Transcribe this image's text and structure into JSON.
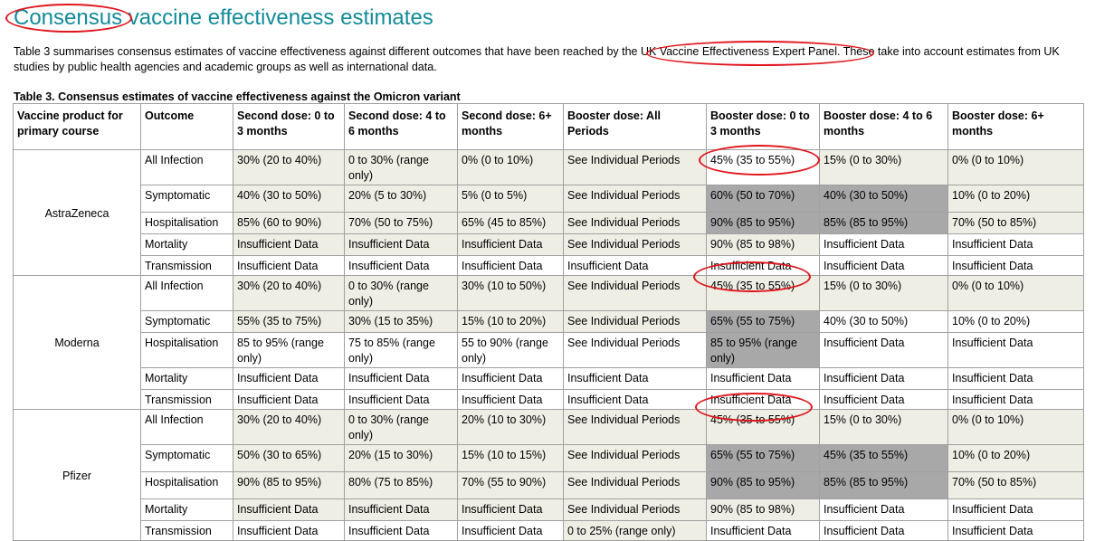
{
  "heading": "Consensus vaccine effectiveness estimates",
  "intro": "Table 3 summarises consensus estimates of vaccine effectiveness against different outcomes that have been reached by the UK Vaccine Effectiveness Expert Panel. These take into account estimates from UK studies by public health agencies and academic groups as well as international data.",
  "table": {
    "caption": "Table 3. Consensus estimates of vaccine effectiveness against the Omicron variant",
    "headers": [
      "Vaccine product for primary course",
      "Outcome",
      "Second dose: 0 to 3 months",
      "Second dose: 4 to 6 months",
      "Second dose: 6+ months",
      "Booster dose: All Periods",
      "Booster dose: 0 to 3 months",
      "Booster dose: 4 to 6 months",
      "Booster dose: 6+ months"
    ],
    "groups": [
      {
        "product": "AstraZeneca",
        "rows": [
          [
            "All Infection",
            "30% (20 to 40%)",
            "0 to 30% (range only)",
            "0% (0 to 10%)",
            "See Individual Periods",
            "45% (35 to 55%)",
            "15% (0 to 30%)",
            "0% (0 to 10%)"
          ],
          [
            "Symptomatic",
            "40% (30 to 50%)",
            "20% (5 to 30%)",
            "5% (0 to 5%)",
            "See Individual Periods",
            "60% (50 to 70%)",
            "40% (30 to 50%)",
            "10% (0 to 20%)"
          ],
          [
            "Hospitalisation",
            "85% (60 to 90%)",
            "70% (50 to 75%)",
            "65% (45 to 85%)",
            "See Individual Periods",
            "90% (85 to 95%)",
            "85% (85 to 95%)",
            "70% (50 to 85%)"
          ],
          [
            "Mortality",
            "Insufficient Data",
            "Insufficient Data",
            "Insufficient Data",
            "See Individual Periods",
            "90% (85 to 98%)",
            "Insufficient Data",
            "Insufficient Data"
          ],
          [
            "Transmission",
            "Insufficient Data",
            "Insufficient Data",
            "Insufficient Data",
            "Insufficient Data",
            "Insufficient Data",
            "Insufficient Data",
            "Insufficient Data"
          ]
        ]
      },
      {
        "product": "Moderna",
        "rows": [
          [
            "All Infection",
            "30% (20 to 40%)",
            "0 to 30% (range only)",
            "30% (10 to 50%)",
            "See Individual Periods",
            "45% (35 to 55%)",
            "15% (0 to 30%)",
            "0% (0 to 10%)"
          ],
          [
            "Symptomatic",
            "55% (35 to 75%)",
            "30% (15 to 35%)",
            "15% (10 to 20%)",
            "See Individual Periods",
            "65% (55 to 75%)",
            "40% (30 to 50%)",
            "10% (0 to 20%)"
          ],
          [
            "Hospitalisation",
            "85 to 95% (range only)",
            "75 to 85% (range only)",
            "55 to 90% (range only)",
            "See Individual Periods",
            "85 to 95% (range only)",
            "Insufficient Data",
            "Insufficient Data"
          ],
          [
            "Mortality",
            "Insufficient Data",
            "Insufficient Data",
            "Insufficient Data",
            "Insufficient Data",
            "Insufficient Data",
            "Insufficient Data",
            "Insufficient Data"
          ],
          [
            "Transmission",
            "Insufficient Data",
            "Insufficient Data",
            "Insufficient Data",
            "Insufficient Data",
            "Insufficient Data",
            "Insufficient Data",
            "Insufficient Data"
          ]
        ]
      },
      {
        "product": "Pfizer",
        "rows": [
          [
            "All Infection",
            "30% (20 to 40%)",
            "0 to 30% (range only)",
            "20% (10 to 30%)",
            "See Individual Periods",
            "45% (35 to 55%)",
            "15% (0 to 30%)",
            "0% (0 to 10%)"
          ],
          [
            "Symptomatic",
            "50% (30 to 65%)",
            "20% (15 to 30%)",
            "15% (10 to 15%)",
            "See Individual Periods",
            "65% (55 to 75%)",
            "45% (35 to 55%)",
            "10% (0 to 20%)"
          ],
          [
            "Hospitalisation",
            "90% (85 to 95%)",
            "80% (75 to 85%)",
            "70% (55 to 90%)",
            "See Individual Periods",
            "90% (85 to 95%)",
            "85% (85 to 95%)",
            "70% (50 to 85%)"
          ],
          [
            "Mortality",
            "Insufficient Data",
            "Insufficient Data",
            "Insufficient Data",
            "See Individual Periods",
            "90% (85 to 98%)",
            "Insufficient Data",
            "Insufficient Data"
          ],
          [
            "Transmission",
            "Insufficient Data",
            "Insufficient Data",
            "Insufficient Data",
            "0 to 25% (range only)",
            "Insufficient Data",
            "Insufficient Data",
            "Insufficient Data"
          ]
        ]
      }
    ],
    "shading": {
      "legend_colors": {
        "light": "#efeee4",
        "dark": "#a8a8a8"
      },
      "groups": [
        [
          "LLLL LLL",
          "LLLLDDL",
          "LLLLDDL",
          "LLLLL  ",
          "       "
        ],
        [
          "LLLLLLL",
          "LLLLD  ",
          "    D  ",
          "       ",
          "       "
        ],
        [
          "LLLLLLL",
          "LLLLDDL",
          "LLLLDDL",
          "LLLLL  ",
          "   L   "
        ]
      ]
    }
  },
  "annotations": {
    "ring_color": "#e0161d"
  }
}
